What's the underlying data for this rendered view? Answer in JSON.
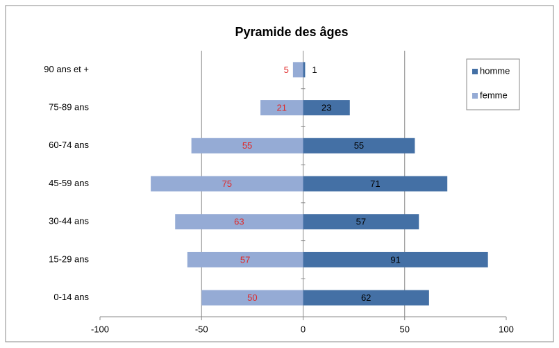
{
  "chart_data": {
    "type": "bar",
    "orientation": "horizontal",
    "stacked": true,
    "title": "Pyramide des âges",
    "categories": [
      "0-14 ans",
      "15-29 ans",
      "30-44 ans",
      "45-59 ans",
      "60-74 ans",
      "75-89 ans",
      "90 ans et +"
    ],
    "series": [
      {
        "name": "homme",
        "color": "#4470a5",
        "label_color": "#000000",
        "values": [
          62,
          91,
          57,
          71,
          55,
          23,
          1
        ]
      },
      {
        "name": "femme",
        "color": "#95abd5",
        "label_color": "#e02828",
        "values": [
          -50,
          -57,
          -63,
          -75,
          -55,
          -21,
          -5
        ],
        "value_labels": [
          "50",
          "57",
          "63",
          "75",
          "55",
          "21",
          "5"
        ]
      }
    ],
    "xlim": [
      -100,
      100
    ],
    "xticks": [
      -100,
      -50,
      0,
      50,
      100
    ],
    "grid": true,
    "legend": "top-right"
  }
}
